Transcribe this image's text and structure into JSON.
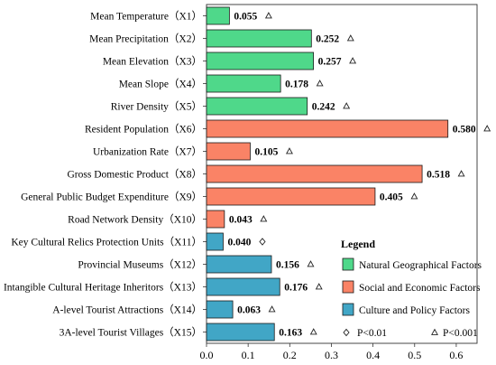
{
  "chart_data": {
    "type": "bar",
    "orientation": "horizontal",
    "xlim": [
      0,
      0.65
    ],
    "ticks": [
      0.0,
      0.1,
      0.2,
      0.3,
      0.4,
      0.5,
      0.6
    ],
    "tick_labels": [
      "0.0",
      "0.1",
      "0.2",
      "0.3",
      "0.4",
      "0.5",
      "0.6"
    ],
    "categories": [
      "Mean Temperature（X1）",
      "Mean Precipitation（X2）",
      "Mean Elevation（X3）",
      "Mean Slope（X4）",
      "River Density（X5）",
      "Resident Population（X6）",
      "Urbanization Rate（X7）",
      "Gross Domestic Product（X8）",
      "General Public Budget Expenditure（X9）",
      "Road Network Density（X10）",
      "Key Cultural Relics Protection Units（X11）",
      "Provincial Museums（X12）",
      "Intangible Cultural Heritage Inheritors（X13）",
      "A-level Tourist Attractions（X14）",
      "3A-level Tourist Villages（X15）"
    ],
    "values": [
      0.055,
      0.252,
      0.257,
      0.178,
      0.242,
      0.58,
      0.105,
      0.518,
      0.405,
      0.043,
      0.04,
      0.156,
      0.176,
      0.063,
      0.163
    ],
    "value_labels": [
      "0.055",
      "0.252",
      "0.257",
      "0.178",
      "0.242",
      "0.580",
      "0.105",
      "0.518",
      "0.405",
      "0.043",
      "0.040",
      "0.156",
      "0.176",
      "0.063",
      "0.163"
    ],
    "groups": [
      0,
      0,
      0,
      0,
      0,
      1,
      1,
      1,
      1,
      1,
      2,
      2,
      2,
      2,
      2
    ],
    "significance": [
      "p001",
      "p001",
      "p001",
      "p001",
      "p001",
      "p001",
      "p001",
      "p001",
      "p001",
      "p001",
      "p01",
      "p001",
      "p001",
      "p001",
      "p001"
    ],
    "group_names": [
      "Natural Geographical Factors",
      "Social and Economic Factors",
      "Culture and Policy Factors"
    ],
    "group_colors": [
      "#4fd88a",
      "#fa8366",
      "#41a6c6"
    ],
    "legend": {
      "title": "Legend",
      "position": "bottom-right",
      "items": [
        {
          "symbol": "square",
          "color": "#4fd88a",
          "label": "Natural Geographical Factors"
        },
        {
          "symbol": "square",
          "color": "#fa8366",
          "label": "Social and Economic Factors"
        },
        {
          "symbol": "square",
          "color": "#41a6c6",
          "label": "Culture and Policy Factors"
        }
      ],
      "significance": [
        {
          "symbol": "diamond",
          "label": "P<0.01"
        },
        {
          "symbol": "triangle",
          "label": "P<0.001"
        }
      ]
    },
    "grid": false
  }
}
